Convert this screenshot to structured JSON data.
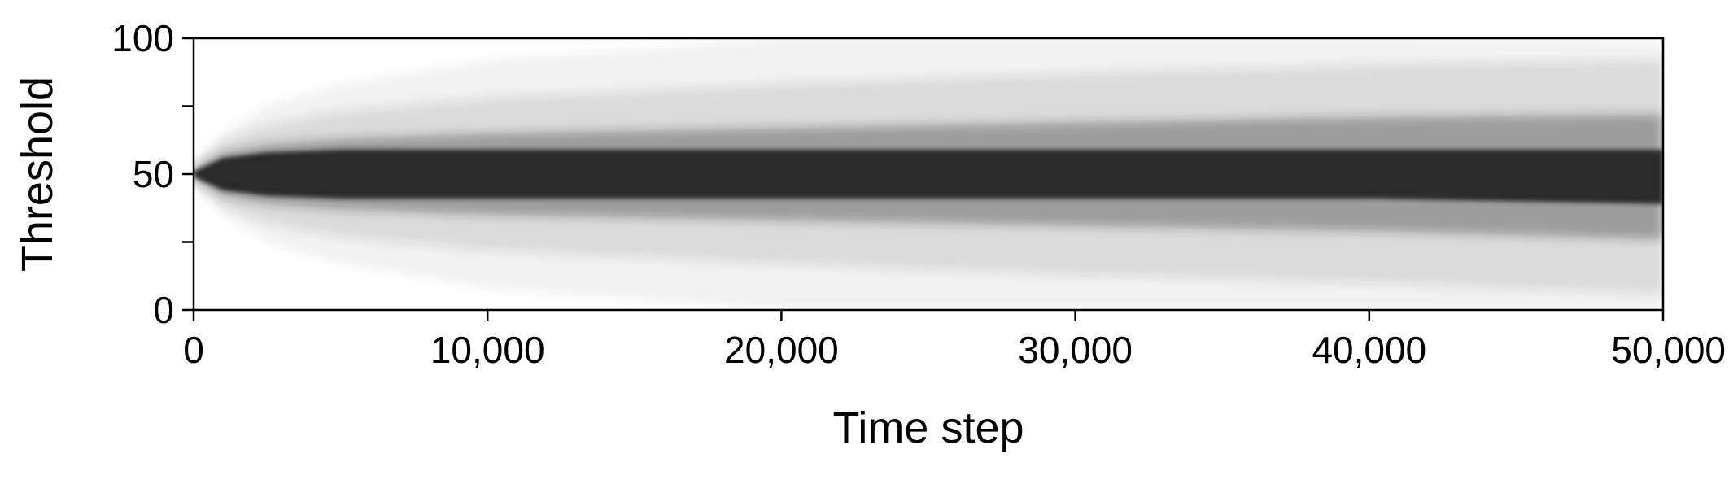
{
  "chart_data": {
    "type": "area",
    "title": "",
    "xlabel": "Time step",
    "ylabel": "Threshold",
    "xlim": [
      0,
      50000
    ],
    "ylim": [
      0,
      100
    ],
    "xticks": [
      0,
      10000,
      20000,
      30000,
      40000,
      50000
    ],
    "xtick_labels": [
      "0",
      "10,000",
      "20,000",
      "30,000",
      "40,000",
      "50,000"
    ],
    "yticks": [
      0,
      25,
      50,
      75,
      100
    ],
    "ytick_labels": [
      "0",
      "",
      "50",
      "",
      "100"
    ],
    "grid": false,
    "legend": "none",
    "color": "#2a2a2a",
    "density_bands": {
      "x": [
        0,
        1000,
        2500,
        5000,
        10000,
        20000,
        30000,
        40000,
        50000
      ],
      "center": [
        50,
        50,
        50,
        50,
        50,
        50,
        50,
        50,
        49
      ],
      "core_halfwidth": [
        1,
        6,
        8,
        9,
        9,
        9,
        9,
        9,
        10
      ],
      "mid_halfwidth": [
        2,
        8,
        11,
        13,
        15,
        17,
        19,
        21,
        23
      ],
      "outer_halfwidth": [
        3,
        12,
        18,
        23,
        28,
        33,
        37,
        40,
        43
      ],
      "faint_halfwidth": [
        4,
        15,
        25,
        33,
        42,
        50,
        50,
        50,
        50
      ]
    }
  }
}
